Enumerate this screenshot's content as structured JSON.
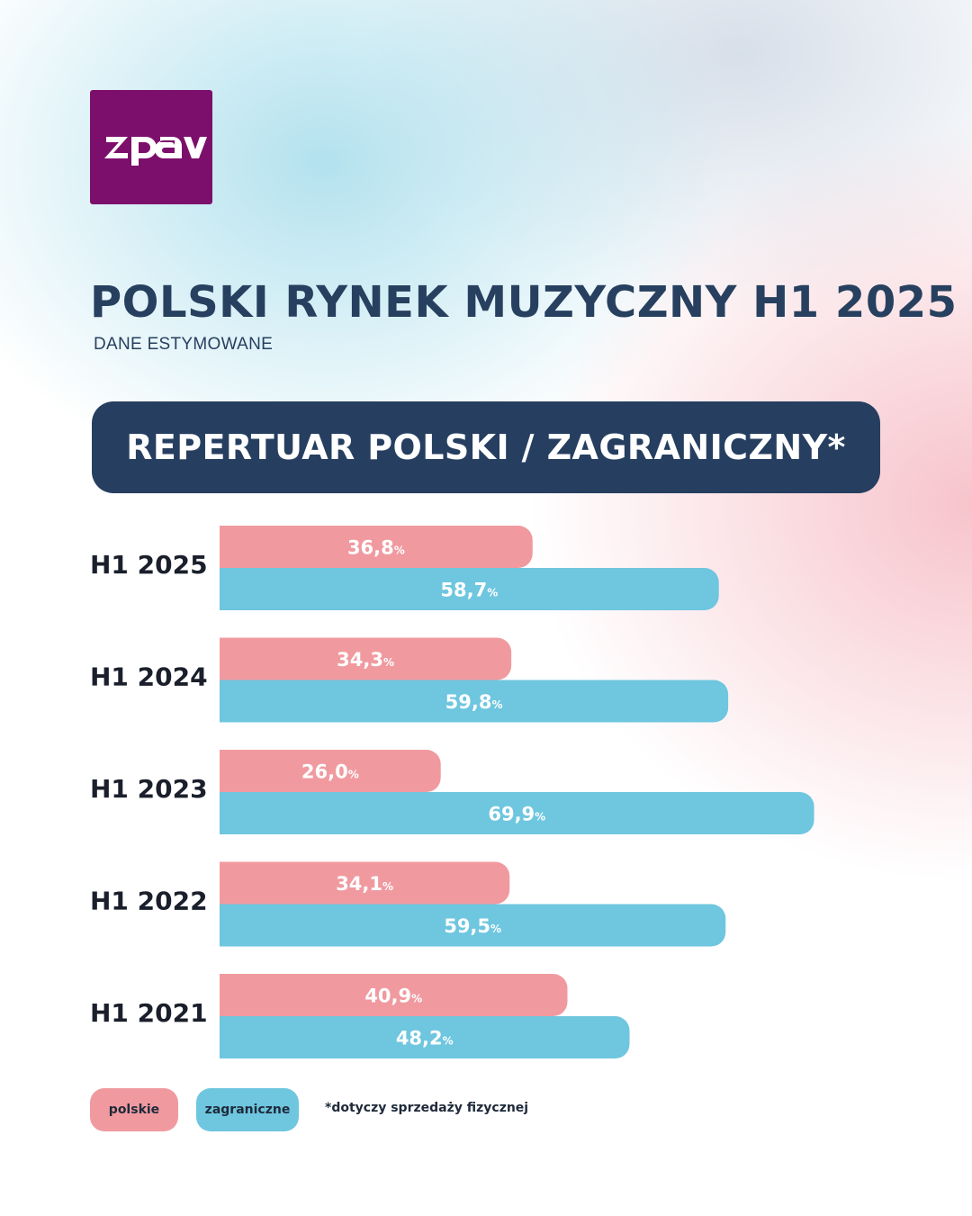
{
  "logo": {
    "text": "zpav",
    "background": "#7d0f6c"
  },
  "title": "POLSKI RYNEK MUZYCZNY H1 2025",
  "subtitle": "DANE ESTYMOWANE",
  "banner": "REPERTUAR POLSKI / ZAGRANICZNY*",
  "legend": {
    "polish": "polskie",
    "foreign": "zagraniczne"
  },
  "footnote": "*dotyczy sprzedaży fizycznej",
  "colors": {
    "polish": "#f09aa0",
    "foreign": "#6ec6df",
    "navy": "#263f60",
    "label": "#ffffff"
  },
  "chart_data": {
    "type": "bar",
    "orientation": "horizontal",
    "categories": [
      "H1 2025",
      "H1 2024",
      "H1 2023",
      "H1 2022",
      "H1 2021"
    ],
    "series": [
      {
        "name": "polskie",
        "values": [
          36.8,
          34.3,
          26.0,
          34.1,
          40.9
        ],
        "labels": [
          "36,8",
          "34,3",
          "26,0",
          "34,1",
          "40,9"
        ]
      },
      {
        "name": "zagraniczne",
        "values": [
          58.7,
          59.8,
          69.9,
          59.5,
          48.2
        ],
        "labels": [
          "58,7",
          "59,8",
          "69,9",
          "59,5",
          "48,2"
        ]
      }
    ],
    "unit": "%",
    "title": "REPERTUAR POLSKI / ZAGRANICZNY*",
    "xlabel": "",
    "ylabel": "",
    "grid": false,
    "legend": "bottom-left"
  }
}
